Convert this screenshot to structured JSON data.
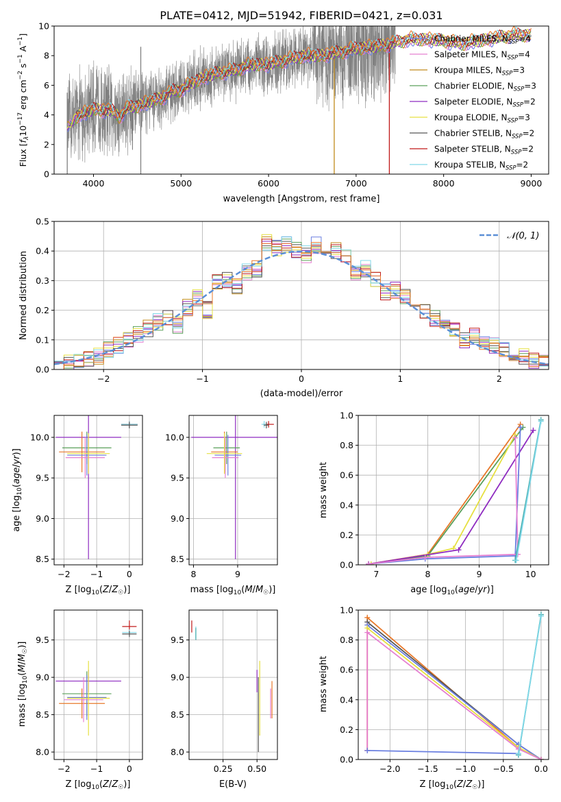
{
  "page": {
    "title": "PLATE=0412, MJD=51942, FIBERID=0421, z=0.031"
  },
  "colors": {
    "Chabrier MILES": "#6a7fe0",
    "Salpeter MILES": "#e57fd1",
    "Kroupa MILES": "#c08a1a",
    "Chabrier ELODIE": "#5aa05a",
    "Salpeter ELODIE": "#8e2bc0",
    "Kroupa ELODIE": "#e6e040",
    "Chabrier STELIB": "#555555",
    "Salpeter STELIB": "#c01818",
    "Kroupa STELIB": "#80d8e8",
    "Extra Orange": "#e8782a",
    "Extra Green": "#9fd24a",
    "Extra Teal": "#3fa8a8",
    "data": "#808080",
    "gaussian": "#5b8fd6",
    "grid": "#b0b0b0"
  },
  "chart_data": [
    {
      "id": "spectrum",
      "type": "line",
      "title": "PLATE=0412, MJD=51942, FIBERID=0421, z=0.031",
      "xlabel": "wavelength [Angstrom, rest frame]",
      "ylabel": "Flux [f_λ 10^-17 erg cm^-2 s^-1 A^-1]",
      "xlim": [
        3550,
        9200
      ],
      "ylim": [
        0,
        10
      ],
      "xticks": [
        4000,
        5000,
        6000,
        7000,
        8000,
        9000
      ],
      "yticks": [
        0,
        2,
        4,
        6,
        8,
        10
      ],
      "grid": false,
      "legend_position": "right",
      "data_range": [
        3700,
        7450
      ],
      "model_curve": {
        "x": [
          3700,
          3800,
          3900,
          4000,
          4100,
          4200,
          4300,
          4400,
          4500,
          4600,
          4700,
          4800,
          4900,
          5000,
          5200,
          5400,
          5600,
          5800,
          6000,
          6200,
          6400,
          6600,
          6800,
          7000,
          7200,
          7400,
          7600,
          7800,
          8000,
          8200,
          8400,
          8600,
          8800,
          9000
        ],
        "y": [
          3.2,
          3.9,
          4.1,
          4.4,
          4.3,
          4.3,
          3.9,
          4.5,
          4.6,
          4.8,
          5.0,
          5.2,
          5.6,
          5.7,
          6.4,
          6.8,
          7.0,
          7.4,
          7.4,
          7.7,
          8.0,
          8.0,
          8.2,
          8.5,
          8.6,
          8.8,
          9.1,
          9.1,
          9.0,
          8.8,
          9.0,
          9.2,
          9.4,
          9.4
        ]
      },
      "legend": [
        {
          "label": "Chabrier MILES, N",
          "sub": "SSP",
          "num": "=4"
        },
        {
          "label": "Salpeter MILES, N",
          "sub": "SSP",
          "num": "=4"
        },
        {
          "label": "Kroupa MILES, N",
          "sub": "SSP",
          "num": "=3"
        },
        {
          "label": "Chabrier ELODIE, N",
          "sub": "SSP",
          "num": "=3"
        },
        {
          "label": "Salpeter ELODIE, N",
          "sub": "SSP",
          "num": "=2"
        },
        {
          "label": "Kroupa ELODIE, N",
          "sub": "SSP",
          "num": "=3"
        },
        {
          "label": "Chabrier STELIB, N",
          "sub": "SSP",
          "num": "=2"
        },
        {
          "label": "Salpeter STELIB, N",
          "sub": "SSP",
          "num": "=2"
        },
        {
          "label": "Kroupa STELIB, N",
          "sub": "SSP",
          "num": "=2"
        }
      ]
    },
    {
      "id": "residuals",
      "type": "line",
      "xlabel": "(data-model)/error",
      "ylabel": "Normed distribution",
      "xlim": [
        -2.5,
        2.5
      ],
      "ylim": [
        0,
        0.5
      ],
      "xticks": [
        -2,
        -1,
        0,
        1,
        2
      ],
      "yticks": [
        0.0,
        0.1,
        0.2,
        0.3,
        0.4,
        0.5
      ],
      "grid": true,
      "legend_position": "top-right",
      "gaussian_label": "𝒩(0, 1)",
      "histogram_bins": 50,
      "histogram_x": [
        -2.45,
        -2.35,
        -2.25,
        -2.15,
        -2.05,
        -1.95,
        -1.85,
        -1.75,
        -1.65,
        -1.55,
        -1.45,
        -1.35,
        -1.25,
        -1.15,
        -1.05,
        -0.95,
        -0.85,
        -0.75,
        -0.65,
        -0.55,
        -0.45,
        -0.35,
        -0.25,
        -0.15,
        -0.05,
        0.05,
        0.15,
        0.25,
        0.35,
        0.45,
        0.55,
        0.65,
        0.75,
        0.85,
        0.95,
        1.05,
        1.15,
        1.25,
        1.35,
        1.45,
        1.55,
        1.65,
        1.75,
        1.85,
        1.95,
        2.05,
        2.15,
        2.25,
        2.35,
        2.45
      ],
      "histogram_y": [
        0.02,
        0.025,
        0.03,
        0.04,
        0.045,
        0.065,
        0.08,
        0.1,
        0.12,
        0.14,
        0.16,
        0.17,
        0.15,
        0.21,
        0.24,
        0.2,
        0.29,
        0.3,
        0.28,
        0.33,
        0.34,
        0.43,
        0.41,
        0.42,
        0.4,
        0.39,
        0.42,
        0.41,
        0.4,
        0.38,
        0.32,
        0.34,
        0.3,
        0.26,
        0.27,
        0.25,
        0.21,
        0.2,
        0.17,
        0.15,
        0.14,
        0.1,
        0.11,
        0.085,
        0.08,
        0.065,
        0.05,
        0.045,
        0.03,
        0.025
      ]
    },
    {
      "id": "age_vs_Z",
      "type": "scatter",
      "xlabel": "Z [log10(Z/Z☉)]",
      "ylabel": "age [log10(age/yr)]",
      "xlim": [
        -2.3,
        0.4
      ],
      "ylim": [
        8.43,
        10.27
      ],
      "xticks": [
        -2,
        -1,
        0
      ],
      "yticks": [
        8.5,
        9.0,
        9.5,
        10.0
      ],
      "grid": true,
      "points": [
        {
          "x": -1.25,
          "xerr": 1.0,
          "y": 10.0,
          "yerr": 1.5,
          "c": "Salpeter ELODIE"
        },
        {
          "x": -1.3,
          "xerr": 0.75,
          "y": 9.87,
          "yerr": 0.2,
          "c": "Chabrier ELODIE"
        },
        {
          "x": -1.45,
          "xerr": 0.7,
          "y": 9.82,
          "yerr": 0.25,
          "c": "Extra Orange"
        },
        {
          "x": -1.3,
          "xerr": 0.6,
          "y": 9.78,
          "yerr": 0.25,
          "c": "Chabrier MILES"
        },
        {
          "x": -1.35,
          "xerr": 0.6,
          "y": 9.75,
          "yerr": 0.25,
          "c": "Salpeter MILES"
        },
        {
          "x": -1.25,
          "xerr": 0.65,
          "y": 9.8,
          "yerr": 0.25,
          "c": "Kroupa ELODIE"
        },
        {
          "x": 0.0,
          "xerr": 0.25,
          "y": 10.16,
          "yerr": 0.04,
          "c": "Salpeter STELIB"
        },
        {
          "x": 0.0,
          "xerr": 0.25,
          "y": 10.16,
          "yerr": 0.04,
          "c": "Kroupa STELIB"
        },
        {
          "x": 0.0,
          "xerr": 0.25,
          "y": 10.15,
          "yerr": 0.04,
          "c": "Chabrier STELIB"
        }
      ]
    },
    {
      "id": "age_vs_mass",
      "type": "scatter",
      "xlabel": "mass [log10(M/M☉)]",
      "ylabel": "",
      "xlim": [
        7.9,
        9.9
      ],
      "ylim": [
        8.43,
        10.27
      ],
      "xticks": [
        8,
        9
      ],
      "yticks": [
        8.5,
        9.0,
        9.5,
        10.0
      ],
      "grid": true,
      "points": [
        {
          "x": 8.95,
          "xerr": 1.0,
          "y": 10.0,
          "yerr": 1.5,
          "c": "Salpeter ELODIE"
        },
        {
          "x": 8.75,
          "xerr": 0.3,
          "y": 9.87,
          "yerr": 0.2,
          "c": "Chabrier ELODIE"
        },
        {
          "x": 8.7,
          "xerr": 0.3,
          "y": 9.82,
          "yerr": 0.25,
          "c": "Extra Orange"
        },
        {
          "x": 8.78,
          "xerr": 0.3,
          "y": 9.78,
          "yerr": 0.25,
          "c": "Chabrier MILES"
        },
        {
          "x": 8.72,
          "xerr": 0.3,
          "y": 9.75,
          "yerr": 0.25,
          "c": "Salpeter MILES"
        },
        {
          "x": 8.7,
          "xerr": 0.4,
          "y": 9.8,
          "yerr": 0.25,
          "c": "Kroupa ELODIE"
        },
        {
          "x": 9.7,
          "xerr": 0.12,
          "y": 10.16,
          "yerr": 0.04,
          "c": "Salpeter STELIB"
        },
        {
          "x": 9.6,
          "xerr": 0.06,
          "y": 10.16,
          "yerr": 0.04,
          "c": "Kroupa STELIB"
        },
        {
          "x": 9.65,
          "xerr": 0.06,
          "y": 10.15,
          "yerr": 0.04,
          "c": "Chabrier STELIB"
        }
      ]
    },
    {
      "id": "weight_vs_age",
      "type": "line",
      "xlabel": "age [log10(age/yr)]",
      "ylabel": "mass weight",
      "xlim": [
        6.65,
        10.35
      ],
      "ylim": [
        0,
        1
      ],
      "xticks": [
        7,
        8,
        9,
        10
      ],
      "yticks": [
        0.0,
        0.2,
        0.4,
        0.6,
        0.8,
        1.0
      ],
      "grid": true,
      "series": [
        {
          "c": "Extra Orange",
          "x": [
            6.85,
            8.0,
            9.8
          ],
          "y": [
            0.005,
            0.07,
            0.94
          ]
        },
        {
          "c": "Chabrier ELODIE",
          "x": [
            6.85,
            8.0,
            9.85
          ],
          "y": [
            0.005,
            0.06,
            0.92
          ]
        },
        {
          "c": "Kroupa ELODIE",
          "x": [
            6.9,
            8.0,
            8.5,
            9.7
          ],
          "y": [
            0.005,
            0.07,
            0.11,
            0.87
          ]
        },
        {
          "c": "Salpeter ELODIE",
          "x": [
            6.85,
            8.6,
            10.05
          ],
          "y": [
            0.005,
            0.1,
            0.9
          ]
        },
        {
          "c": "Chabrier MILES",
          "x": [
            6.85,
            7.95,
            9.7,
            9.8
          ],
          "y": [
            0.005,
            0.04,
            0.06,
            0.92
          ]
        },
        {
          "c": "Salpeter MILES",
          "x": [
            6.85,
            7.95,
            9.75,
            9.7
          ],
          "y": [
            0.005,
            0.05,
            0.07,
            0.85
          ]
        },
        {
          "c": "Extra Teal",
          "x": [
            9.7,
            10.2
          ],
          "y": [
            0.03,
            0.97
          ]
        },
        {
          "c": "Kroupa STELIB",
          "x": [
            9.72,
            10.2
          ],
          "y": [
            0.03,
            0.96
          ]
        }
      ]
    },
    {
      "id": "mass_vs_Z",
      "type": "scatter",
      "xlabel": "Z [log10(Z/Z☉)]",
      "ylabel": "mass [log10(M/M☉)]",
      "xlim": [
        -2.3,
        0.4
      ],
      "ylim": [
        7.9,
        9.9
      ],
      "xticks": [
        -2,
        -1,
        0
      ],
      "yticks": [
        8.0,
        8.5,
        9.0,
        9.5
      ],
      "grid": true,
      "points": [
        {
          "x": -1.25,
          "xerr": 1.0,
          "y": 8.95,
          "yerr": 0.15,
          "c": "Salpeter ELODIE"
        },
        {
          "x": -1.3,
          "xerr": 0.75,
          "y": 8.78,
          "yerr": 0.3,
          "c": "Chabrier ELODIE"
        },
        {
          "x": -1.45,
          "xerr": 0.7,
          "y": 8.65,
          "yerr": 0.2,
          "c": "Extra Orange"
        },
        {
          "x": -1.3,
          "xerr": 0.6,
          "y": 8.73,
          "yerr": 0.3,
          "c": "Chabrier MILES"
        },
        {
          "x": -1.4,
          "xerr": 0.6,
          "y": 8.7,
          "yerr": 0.3,
          "c": "Salpeter MILES"
        },
        {
          "x": -1.25,
          "xerr": 0.65,
          "y": 8.72,
          "yerr": 0.5,
          "c": "Kroupa ELODIE"
        },
        {
          "x": 0.0,
          "xerr": 0.22,
          "y": 9.68,
          "yerr": 0.08,
          "c": "Salpeter STELIB"
        },
        {
          "x": 0.0,
          "xerr": 0.22,
          "y": 9.6,
          "yerr": 0.04,
          "c": "Kroupa STELIB"
        },
        {
          "x": 0.0,
          "xerr": 0.22,
          "y": 9.58,
          "yerr": 0.04,
          "c": "Chabrier STELIB"
        }
      ]
    },
    {
      "id": "mass_vs_EBV",
      "type": "scatter",
      "xlabel": "E(B-V)",
      "ylabel": "",
      "xlim": [
        0.0,
        0.65
      ],
      "ylim": [
        7.9,
        9.9
      ],
      "xticks": [
        0.25,
        0.5
      ],
      "yticks": [
        8.0,
        8.5,
        9.0,
        9.5
      ],
      "grid": true,
      "points": [
        {
          "x": 0.5,
          "xerr": 0.0,
          "y": 8.95,
          "yerr": 0.15,
          "c": "Salpeter ELODIE"
        },
        {
          "x": 0.52,
          "xerr": 0.0,
          "y": 8.72,
          "yerr": 0.5,
          "c": "Kroupa ELODIE"
        },
        {
          "x": 0.51,
          "xerr": 0.0,
          "y": 8.5,
          "yerr": 0.5,
          "c": "Chabrier STELIB"
        },
        {
          "x": 0.6,
          "xerr": 0.0,
          "y": 8.65,
          "yerr": 0.2,
          "c": "Salpeter MILES"
        },
        {
          "x": 0.61,
          "xerr": 0.0,
          "y": 8.7,
          "yerr": 0.25,
          "c": "Extra Orange"
        },
        {
          "x": 0.02,
          "xerr": 0.0,
          "y": 9.68,
          "yerr": 0.08,
          "c": "Salpeter STELIB"
        },
        {
          "x": 0.05,
          "xerr": 0.0,
          "y": 9.6,
          "yerr": 0.08,
          "c": "Kroupa STELIB"
        },
        {
          "x": 0.05,
          "xerr": 0.0,
          "y": 9.58,
          "yerr": 0.08,
          "c": "Extra Teal"
        }
      ]
    },
    {
      "id": "weight_vs_Z",
      "type": "line",
      "xlabel": "Z [log10(Z/Z☉)]",
      "ylabel": "mass weight",
      "xlim": [
        -2.42,
        0.1
      ],
      "ylim": [
        0,
        1
      ],
      "xticks": [
        -2.0,
        -1.5,
        -1.0,
        -0.5,
        0.0
      ],
      "yticks": [
        0.0,
        0.2,
        0.4,
        0.6,
        0.8,
        1.0
      ],
      "grid": true,
      "series": [
        {
          "c": "Extra Orange",
          "x": [
            -2.3,
            -2.3,
            -0.3,
            0.0
          ],
          "y": [
            0.06,
            0.95,
            0.08,
            0.0
          ]
        },
        {
          "c": "Chabrier STELIB",
          "x": [
            -2.3,
            -0.3,
            0.0
          ],
          "y": [
            0.92,
            0.1,
            0.0
          ]
        },
        {
          "c": "Chabrier MILES",
          "x": [
            -2.3,
            -0.3,
            0.0
          ],
          "y": [
            0.9,
            0.1,
            0.0
          ]
        },
        {
          "c": "Kroupa ELODIE",
          "x": [
            -2.3,
            -0.3,
            0.0
          ],
          "y": [
            0.88,
            0.08,
            0.0
          ]
        },
        {
          "c": "Salpeter MILES",
          "x": [
            -2.3,
            -2.3,
            -0.3,
            0.0
          ],
          "y": [
            0.06,
            0.85,
            0.07,
            0.0
          ]
        },
        {
          "c": "Chabrier MILES",
          "x": [
            -2.3,
            -0.3
          ],
          "y": [
            0.06,
            0.04
          ]
        },
        {
          "c": "Extra Teal",
          "x": [
            -0.3,
            0.0
          ],
          "y": [
            0.03,
            0.97
          ]
        },
        {
          "c": "Kroupa STELIB",
          "x": [
            -0.3,
            0.0
          ],
          "y": [
            0.04,
            0.96
          ]
        }
      ]
    }
  ]
}
